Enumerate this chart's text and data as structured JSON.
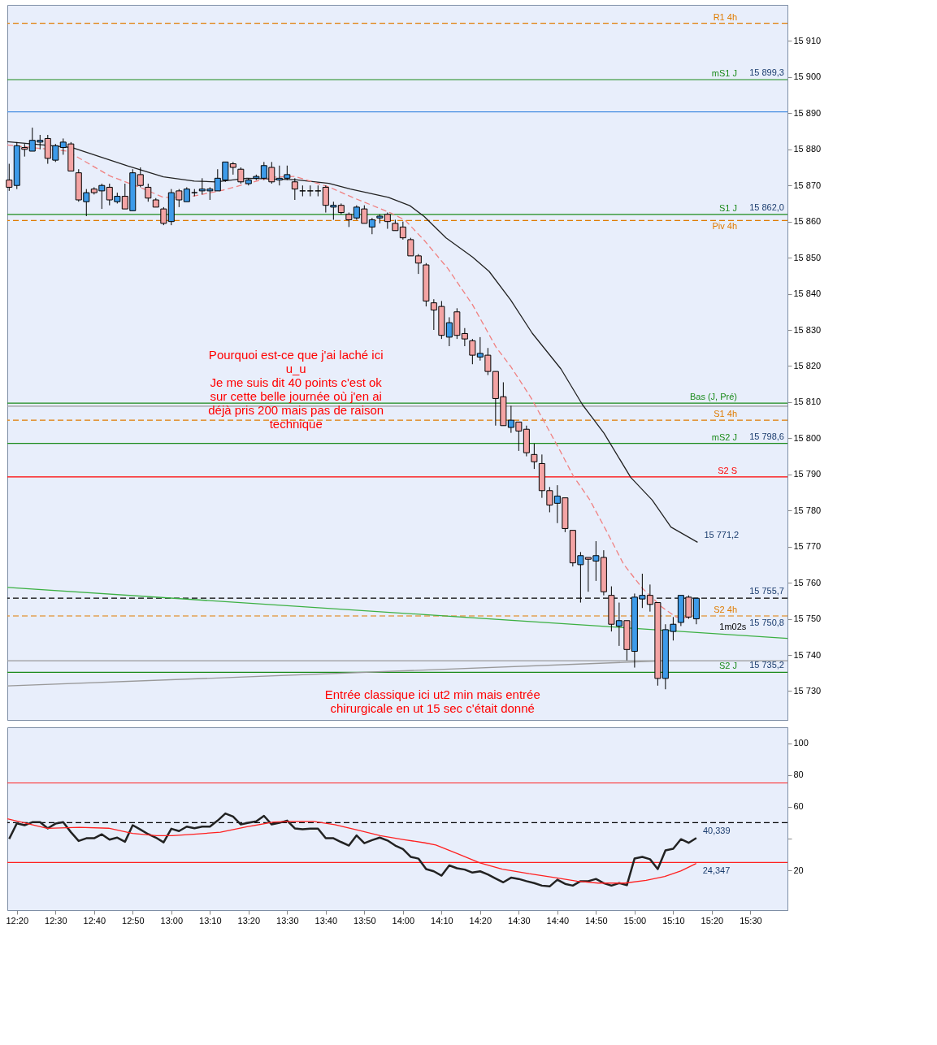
{
  "chart_data": [
    {
      "type": "candlestick",
      "x": [
        12.3,
        12.3333,
        12.3667,
        12.4,
        12.4333,
        12.4667,
        12.5,
        12.5333,
        12.5667,
        12.6,
        12.6333,
        12.6667,
        12.7,
        12.7333,
        12.7667,
        12.8,
        12.8333,
        12.8667,
        12.9,
        12.9333,
        12.9667,
        13.0,
        13.0333,
        13.0667,
        13.1,
        13.1333,
        13.1667,
        13.2,
        13.2333,
        13.2667,
        13.3,
        13.3333,
        13.3667,
        13.4,
        13.4333,
        13.4667,
        13.5,
        13.5333,
        13.5667,
        13.6,
        13.6333,
        13.6667,
        13.7,
        13.7333,
        13.7667,
        13.8,
        13.8333,
        13.8667,
        13.9,
        13.9333,
        13.9667,
        14.0,
        14.0333,
        14.0667,
        14.1,
        14.1333,
        14.1667,
        14.2,
        14.2333,
        14.2667,
        14.3,
        14.3333,
        14.3667,
        14.4,
        14.4333,
        14.4667,
        14.5,
        14.5333,
        14.5667,
        14.6,
        14.6333,
        14.6667,
        14.7,
        14.7333,
        14.7667,
        14.8,
        14.8333,
        14.8667,
        14.9,
        14.9333,
        14.9667,
        15.0,
        15.0333,
        15.0667,
        15.1,
        15.1333,
        15.1667,
        15.2,
        15.2333,
        15.2667
      ],
      "ohlc": [
        [
          15871.5,
          15876,
          15868.5,
          15869.5
        ],
        [
          15870,
          15882,
          15869,
          15881
        ],
        [
          15880.5,
          15881.5,
          15878,
          15880
        ],
        [
          15879.5,
          15886,
          15879.5,
          15882.5
        ],
        [
          15882,
          15884,
          15880,
          15882.5
        ],
        [
          15883,
          15884,
          15876,
          15877.5
        ],
        [
          15877,
          15881.5,
          15876.5,
          15881
        ],
        [
          15880.5,
          15883,
          15878.5,
          15882
        ],
        [
          15881.5,
          15882,
          15874,
          15874
        ],
        [
          15873.5,
          15874.5,
          15865.5,
          15866
        ],
        [
          15865.5,
          15869,
          15861.5,
          15868
        ],
        [
          15869,
          15869.5,
          15867.5,
          15868
        ],
        [
          15868.5,
          15870.5,
          15863.5,
          15870
        ],
        [
          15869.5,
          15870.5,
          15864.5,
          15866
        ],
        [
          15865.5,
          15868,
          15865,
          15867
        ],
        [
          15867,
          15870.5,
          15863.5,
          15863.5
        ],
        [
          15863,
          15874.5,
          15863,
          15873.5
        ],
        [
          15873,
          15875,
          15869.5,
          15870
        ],
        [
          15869.5,
          15870.5,
          15865.5,
          15866.5
        ],
        [
          15866,
          15866.5,
          15864,
          15864
        ],
        [
          15863.5,
          15864,
          15859,
          15859.5
        ],
        [
          15860,
          15869,
          15859,
          15868
        ],
        [
          15868.5,
          15869,
          15864,
          15866
        ],
        [
          15865.5,
          15869.5,
          15865.5,
          15869
        ],
        [
          15868,
          15869,
          15867,
          15868
        ],
        [
          15868.5,
          15872,
          15867.5,
          15869
        ],
        [
          15868.5,
          15869.5,
          15866,
          15869
        ],
        [
          15868.5,
          15874.5,
          15868.5,
          15872
        ],
        [
          15871.5,
          15876.5,
          15871,
          15876.5
        ],
        [
          15876,
          15876.5,
          15873,
          15875
        ],
        [
          15874.5,
          15875,
          15870.5,
          15871
        ],
        [
          15870.5,
          15872,
          15870,
          15871.5
        ],
        [
          15872,
          15873,
          15871.5,
          15872.5
        ],
        [
          15872,
          15876.5,
          15871.5,
          15875.5
        ],
        [
          15875,
          15876.5,
          15870.5,
          15871
        ],
        [
          15871.5,
          15875.5,
          15870,
          15872
        ],
        [
          15872,
          15875.5,
          15871.5,
          15873
        ],
        [
          15871,
          15872,
          15866,
          15869
        ],
        [
          15868.5,
          15870,
          15867,
          15868.5
        ],
        [
          15868.5,
          15870,
          15867,
          15868.5
        ],
        [
          15868.5,
          15870,
          15867,
          15868.5
        ],
        [
          15869.5,
          15870,
          15862.5,
          15864.5
        ],
        [
          15864,
          15865.5,
          15860.5,
          15864.5
        ],
        [
          15864.5,
          15865,
          15862,
          15862.5
        ],
        [
          15862,
          15862.5,
          15858.5,
          15860.5
        ],
        [
          15861,
          15864.5,
          15860.5,
          15864
        ],
        [
          15863.5,
          15864.5,
          15859.5,
          15859.5
        ],
        [
          15858.5,
          15861,
          15856.5,
          15860.5
        ],
        [
          15861,
          15862,
          15859.5,
          15861.5
        ],
        [
          15862,
          15862.5,
          15858,
          15860
        ],
        [
          15859.5,
          15860.5,
          15857.5,
          15857.5
        ],
        [
          15858.5,
          15860,
          15855,
          15855.5
        ],
        [
          15855,
          15855.5,
          15850.5,
          15850.5
        ],
        [
          15850.5,
          15851,
          15845.5,
          15848.5
        ],
        [
          15848,
          15848.5,
          15836.5,
          15838
        ],
        [
          15837.5,
          15838.5,
          15830,
          15835.5
        ],
        [
          15836.5,
          15838,
          15827.5,
          15828.5
        ],
        [
          15828,
          15833.5,
          15825.5,
          15832
        ],
        [
          15835,
          15836,
          15827.5,
          15828.5
        ],
        [
          15829,
          15830.5,
          15825.5,
          15827.5
        ],
        [
          15827,
          15827.5,
          15820.5,
          15823
        ],
        [
          15822.5,
          15828,
          15821.5,
          15823.5
        ],
        [
          15823,
          15825,
          15817.5,
          15818.5
        ],
        [
          15818.5,
          15818.5,
          15803.5,
          15811
        ],
        [
          15811.5,
          15815.5,
          15803.5,
          15803.5
        ],
        [
          15803,
          15809,
          15801.5,
          15805
        ],
        [
          15804.5,
          15804.5,
          15796.5,
          15802
        ],
        [
          15802.5,
          15803.5,
          15795,
          15796
        ],
        [
          15795.5,
          15798.5,
          15791.5,
          15793.5
        ],
        [
          15793,
          15795.5,
          15783.5,
          15785.5
        ],
        [
          15785.5,
          15786.5,
          15779.5,
          15781.5
        ],
        [
          15782,
          15787,
          15776.5,
          15784
        ],
        [
          15783.5,
          15783.5,
          15774,
          15775
        ],
        [
          15774.5,
          15774.5,
          15764.5,
          15765.5
        ],
        [
          15765,
          15768.5,
          15754.5,
          15767.5
        ],
        [
          15767,
          15767,
          15757.5,
          15766.5
        ],
        [
          15766,
          15771.5,
          15760.5,
          15767.5
        ],
        [
          15767,
          15769,
          15756.5,
          15757.5
        ],
        [
          15756.5,
          15759,
          15746.5,
          15748.5
        ],
        [
          15748,
          15754.5,
          15742.5,
          15749.5
        ],
        [
          15749.5,
          15749.5,
          15738.5,
          15741.5
        ],
        [
          15741,
          15757,
          15736.5,
          15756
        ],
        [
          15755.5,
          15762.5,
          15753,
          15756.5
        ],
        [
          15756.5,
          15759.5,
          15752,
          15754
        ],
        [
          15754.5,
          15754.5,
          15731.5,
          15733.5
        ],
        [
          15733.5,
          15748.5,
          15730.5,
          15747
        ],
        [
          15746.5,
          15750.5,
          15744,
          15748.5
        ],
        [
          15749,
          15756.5,
          15748,
          15756.5
        ],
        [
          15756,
          15756.5,
          15750,
          15750.5
        ],
        [
          15750,
          15755.7,
          15748.5,
          15755.7
        ]
      ],
      "colors": [
        "#f4a4a4",
        "#3d9be9",
        "#f4a4a4",
        "#3d9be9",
        "#3d9be9",
        "#f4a4a4",
        "#3d9be9",
        "#3d9be9",
        "#f4a4a4",
        "#f4a4a4",
        "#3d9be9",
        "#f4a4a4",
        "#3d9be9",
        "#f4a4a4",
        "#3d9be9",
        "#f4a4a4",
        "#3d9be9",
        "#f4a4a4",
        "#f4a4a4",
        "#f4a4a4",
        "#f4a4a4",
        "#3d9be9",
        "#f4a4a4",
        "#3d9be9",
        "#000000",
        "#3d9be9",
        "#3d9be9",
        "#3d9be9",
        "#3d9be9",
        "#f4a4a4",
        "#f4a4a4",
        "#3d9be9",
        "#3d9be9",
        "#3d9be9",
        "#f4a4a4",
        "#3d9be9",
        "#3d9be9",
        "#f4a4a4",
        "#000000",
        "#000000",
        "#000000",
        "#f4a4a4",
        "#3d9be9",
        "#f4a4a4",
        "#f4a4a4",
        "#3d9be9",
        "#f4a4a4",
        "#3d9be9",
        "#3d9be9",
        "#f4a4a4",
        "#f4a4a4",
        "#f4a4a4",
        "#f4a4a4",
        "#f4a4a4",
        "#f4a4a4",
        "#f4a4a4",
        "#f4a4a4",
        "#3d9be9",
        "#f4a4a4",
        "#f4a4a4",
        "#f4a4a4",
        "#3d9be9",
        "#f4a4a4",
        "#f4a4a4",
        "#f4a4a4",
        "#3d9be9",
        "#f4a4a4",
        "#f4a4a4",
        "#f4a4a4",
        "#f4a4a4",
        "#f4a4a4",
        "#3d9be9",
        "#f4a4a4",
        "#f4a4a4",
        "#3d9be9",
        "#f4a4a4",
        "#3d9be9",
        "#f4a4a4",
        "#f4a4a4",
        "#3d9be9",
        "#f4a4a4",
        "#3d9be9",
        "#3d9be9",
        "#f4a4a4",
        "#f4a4a4",
        "#3d9be9",
        "#3d9be9",
        "#3d9be9",
        "#f4a4a4",
        "#3d9be9"
      ],
      "series": [
        {
          "type": "line",
          "color": "#222222",
          "x": [
            12.292,
            12.572,
            12.811,
            12.966,
            13.099,
            13.192,
            13.326,
            13.534,
            13.68,
            13.773,
            13.937,
            14.03,
            14.092,
            14.186,
            14.3,
            14.372,
            14.465,
            14.558,
            14.682,
            14.775,
            14.868,
            14.983,
            15.076,
            15.157,
            15.272
          ],
          "values": [
            15882.1,
            15880.5,
            15875.4,
            15872.4,
            15871.2,
            15871.0,
            15872.0,
            15871.6,
            15870.6,
            15869.0,
            15866.7,
            15864.4,
            15861.4,
            15855.5,
            15850.2,
            15846.2,
            15838.3,
            15829.1,
            15819.2,
            15809.3,
            15801.4,
            15789.2,
            15782.9,
            15775.4,
            15771.2
          ]
        },
        {
          "type": "line",
          "color": "#f08080",
          "line_style": "dashed",
          "x": [
            12.292,
            12.55,
            12.736,
            12.86,
            12.966,
            13.068,
            13.223,
            13.431,
            13.534,
            13.68,
            13.782,
            13.947,
            14.009,
            14.092,
            14.195,
            14.3,
            14.403,
            14.465,
            14.552,
            14.62,
            14.682,
            14.735,
            14.806,
            14.878,
            14.952,
            15.033,
            15.117,
            15.179,
            15.25
          ],
          "values": [
            15881.2,
            15879.5,
            15872.6,
            15869.6,
            15866.7,
            15866.7,
            15868.7,
            15872.3,
            15872.5,
            15869.6,
            15866.7,
            15862.4,
            15860.4,
            15854.8,
            15846.9,
            15837.0,
            15825.1,
            15819.9,
            15811.3,
            15803.4,
            15796.1,
            15789.6,
            15783.0,
            15774.4,
            15765.2,
            15758.5,
            15753.3,
            15750.5,
            15750.3
          ]
        },
        {
          "type": "line",
          "color": "#3cb043",
          "x": [
            12.292,
            15.66
          ],
          "values": [
            15758.7,
            15744.6
          ]
        },
        {
          "type": "line",
          "color": "#999999",
          "x": [
            12.292,
            15.137
          ],
          "values": [
            15731.4,
            15738.4
          ]
        }
      ],
      "xlim": [
        12.292,
        15.66
      ],
      "ylim": [
        15722,
        15920
      ],
      "yticks": [
        {
          "value": 15730,
          "label": "15 730"
        },
        {
          "value": 15740,
          "label": "15 740"
        },
        {
          "value": 15750,
          "label": "15 750"
        },
        {
          "value": 15760,
          "label": "15 760"
        },
        {
          "value": 15770,
          "label": "15 770"
        },
        {
          "value": 15780,
          "label": "15 780"
        },
        {
          "value": 15790,
          "label": "15 790"
        },
        {
          "value": 15800,
          "label": "15 800"
        },
        {
          "value": 15810,
          "label": "15 810"
        },
        {
          "value": 15820,
          "label": "15 820"
        },
        {
          "value": 15830,
          "label": "15 830"
        },
        {
          "value": 15840,
          "label": "15 840"
        },
        {
          "value": 15850,
          "label": "15 850"
        },
        {
          "value": 15860,
          "label": "15 860"
        },
        {
          "value": 15870,
          "label": "15 870"
        },
        {
          "value": 15880,
          "label": "15 880"
        },
        {
          "value": 15890,
          "label": "15 890"
        },
        {
          "value": 15900,
          "label": "15 900"
        },
        {
          "value": 15910,
          "label": "15 910"
        }
      ],
      "tick_labels": "y",
      "ref_lines": [
        {
          "axis": "y",
          "value": 15914.9,
          "label": "R1 4h",
          "color": "#e07b00",
          "line_style": "dashed"
        },
        {
          "axis": "y",
          "value": 15899.3,
          "label": "mS1 J",
          "color": "#1a8a1a"
        },
        {
          "axis": "y",
          "value": 15890.4,
          "color": "#4a90e2"
        },
        {
          "axis": "y",
          "value": 15862.0,
          "label": "S1 J",
          "color": "#1a8a1a"
        },
        {
          "axis": "y",
          "value": 15860.3,
          "label": "Piv 4h",
          "color": "#e07b00",
          "line_style": "dashed"
        },
        {
          "axis": "y",
          "value": 15808.9,
          "color": "#999999"
        },
        {
          "axis": "y",
          "value": 15809.7,
          "label": "Bas (J, Pré)",
          "color": "#1a8a1a"
        },
        {
          "axis": "y",
          "value": 15805.0,
          "label": "S1 4h",
          "color": "#e07b00",
          "line_style": "dashed"
        },
        {
          "axis": "y",
          "value": 15798.6,
          "label": "mS2 J",
          "color": "#1a8a1a"
        },
        {
          "axis": "y",
          "value": 15789.3,
          "label": "S2 S",
          "color": "#ff0000"
        },
        {
          "axis": "y",
          "value": 15755.7,
          "color": "#000000",
          "line_style": "dashed"
        },
        {
          "axis": "y",
          "value": 15750.8,
          "label": "S2 4h",
          "color": "#e07b00",
          "line_style": "dashed"
        },
        {
          "axis": "y",
          "value": 15738.4,
          "color": "#999999"
        },
        {
          "axis": "y",
          "value": 15735.2,
          "label": "S2 J",
          "color": "#1a8a1a"
        }
      ],
      "annotations": [
        "Pourquoi est-ce que j'ai laché ici\nu_u\nJe me suis dit 40 points c'est ok\nsur cette belle journée où j'en ai\ndéjà pris 200 mais pas de raison\ntechnique",
        "Entrée classique ici ut2 min mais entrée\nchirurgicale en ut 15 sec c'était donné",
        {
          "text": "15 899,3",
          "x": 15.66,
          "y": 15899.3
        },
        {
          "text": "15 862,0",
          "x": 15.66,
          "y": 15862.0
        },
        {
          "text": "15 798,6",
          "x": 15.66,
          "y": 15798.6
        },
        {
          "text": "15 771,2",
          "x": 15.272,
          "y": 15771.2
        },
        {
          "text": "15 755,7",
          "x": 15.66,
          "y": 15755.7
        },
        "1m02s",
        {
          "text": "15 750,8",
          "x": 15.66,
          "y": 15750.8
        },
        {
          "text": "15 735,2",
          "x": 15.66,
          "y": 15735.2
        }
      ]
    },
    {
      "type": "line",
      "series": [
        {
          "color": "#222222",
          "x": [
            12.3,
            12.3333,
            12.3667,
            12.4,
            12.4333,
            12.4667,
            12.5,
            12.5333,
            12.5667,
            12.6,
            12.6333,
            12.6667,
            12.7,
            12.7333,
            12.7667,
            12.8,
            12.8333,
            12.8667,
            12.9,
            12.9333,
            12.9667,
            13.0,
            13.0333,
            13.0667,
            13.1,
            13.1333,
            13.1667,
            13.2,
            13.2333,
            13.2667,
            13.3,
            13.3333,
            13.3667,
            13.4,
            13.4333,
            13.4667,
            13.5,
            13.5333,
            13.5667,
            13.6,
            13.6333,
            13.6667,
            13.7,
            13.7333,
            13.7667,
            13.8,
            13.8333,
            13.8667,
            13.9,
            13.9333,
            13.9667,
            14.0,
            14.0333,
            14.0667,
            14.1,
            14.1333,
            14.1667,
            14.2,
            14.2333,
            14.2667,
            14.3,
            14.3333,
            14.3667,
            14.4,
            14.4333,
            14.4667,
            14.5,
            14.5333,
            14.5667,
            14.6,
            14.6333,
            14.6667,
            14.7,
            14.7333,
            14.7667,
            14.8,
            14.8333,
            14.8667,
            14.9,
            14.9333,
            14.9667,
            15.0,
            15.0333,
            15.0667,
            15.1,
            15.1333,
            15.1667,
            15.2,
            15.2333,
            15.2667
          ],
          "values": [
            39.8,
            49.6,
            48.4,
            50.3,
            50.3,
            46.4,
            49.4,
            50.3,
            44.0,
            38.5,
            40.2,
            40.2,
            42.7,
            39.3,
            40.6,
            38.0,
            48.4,
            45.7,
            42.8,
            40.6,
            37.6,
            46.2,
            44.7,
            47.5,
            46.5,
            47.5,
            47.5,
            51.3,
            55.8,
            53.8,
            48.9,
            49.9,
            50.8,
            54.3,
            48.9,
            49.9,
            51.3,
            46.4,
            45.9,
            46.2,
            46.2,
            40.2,
            40.2,
            37.8,
            35.6,
            42.0,
            37.1,
            39.0,
            40.6,
            38.8,
            35.6,
            33.4,
            28.5,
            27.4,
            20.8,
            19.4,
            16.7,
            23.1,
            21.3,
            20.5,
            18.6,
            19.4,
            17.4,
            14.9,
            12.5,
            15.4,
            14.6,
            13.2,
            12.0,
            10.4,
            9.9,
            14.1,
            11.5,
            10.4,
            13.2,
            13.2,
            14.6,
            12.0,
            10.4,
            12.0,
            10.7,
            27.5,
            28.5,
            27.0,
            20.8,
            32.6,
            33.6,
            39.6,
            37.3,
            40.339
          ]
        },
        {
          "color": "#ff2020",
          "x": [
            12.292,
            12.465,
            12.603,
            12.729,
            12.833,
            12.936,
            13.005,
            13.097,
            13.212,
            13.327,
            13.442,
            13.511,
            13.614,
            13.706,
            13.81,
            13.902,
            14.005,
            14.095,
            14.142,
            14.234,
            14.332,
            14.429,
            14.544,
            14.659,
            14.751,
            14.843,
            14.958,
            15.05,
            15.13,
            15.199,
            15.266
          ],
          "values": [
            52.4,
            46.4,
            47.1,
            46.5,
            43.2,
            41.8,
            41.8,
            42.7,
            44.0,
            47.4,
            50.4,
            50.8,
            50.8,
            48.7,
            45.2,
            41.8,
            39.3,
            37.3,
            36.0,
            30.6,
            24.7,
            20.8,
            17.9,
            15.4,
            13.2,
            12.0,
            12.0,
            13.7,
            16.1,
            19.6,
            24.347
          ]
        }
      ],
      "xlim": [
        12.292,
        15.66
      ],
      "xticks": [
        {
          "value": 12.3333,
          "label": "12:20"
        },
        {
          "value": 12.5,
          "label": "12:30"
        },
        {
          "value": 12.6667,
          "label": "12:40"
        },
        {
          "value": 12.8333,
          "label": "12:50"
        },
        {
          "value": 13,
          "label": "13:00"
        },
        {
          "value": 13.1667,
          "label": "13:10"
        },
        {
          "value": 13.3333,
          "label": "13:20"
        },
        {
          "value": 13.5,
          "label": "13:30"
        },
        {
          "value": 13.6667,
          "label": "13:40"
        },
        {
          "value": 13.8333,
          "label": "13:50"
        },
        {
          "value": 14,
          "label": "14:00"
        },
        {
          "value": 14.1667,
          "label": "14:10"
        },
        {
          "value": 14.3333,
          "label": "14:20"
        },
        {
          "value": 14.5,
          "label": "14:30"
        },
        {
          "value": 14.6667,
          "label": "14:40"
        },
        {
          "value": 14.8333,
          "label": "14:50"
        },
        {
          "value": 15,
          "label": "15:00"
        },
        {
          "value": 15.1667,
          "label": "15:10"
        },
        {
          "value": 15.3333,
          "label": "15:20"
        },
        {
          "value": 15.5,
          "label": "15:30"
        }
      ],
      "ylim": [
        -5,
        110
      ],
      "yticks": [
        20,
        {
          "value": 40,
          "label": null
        },
        60,
        80,
        100
      ],
      "ref_lines": [
        {
          "axis": "y",
          "value": 75,
          "color": "#ff2020"
        },
        {
          "axis": "y",
          "value": 50,
          "color": "#000000",
          "line_style": "dashed"
        },
        {
          "axis": "y",
          "value": 25,
          "color": "#ff2020"
        }
      ],
      "annotations": [
        {
          "text": "40,339",
          "x": 15.2667,
          "y": 40.339
        },
        {
          "text": "24,347",
          "x": 15.266,
          "y": 24.347
        }
      ]
    }
  ]
}
